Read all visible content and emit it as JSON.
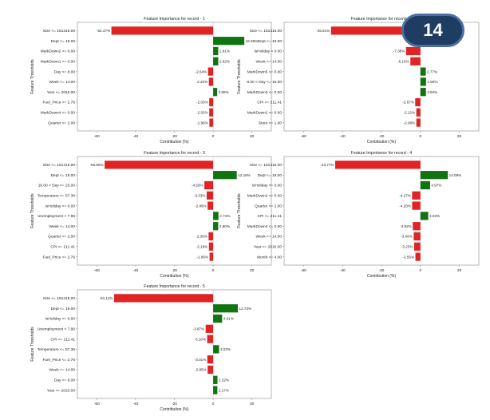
{
  "slide_number": "14",
  "colors": {
    "positive": "#127312",
    "negative": "#e02424",
    "frame": "#888888",
    "text": "#222222"
  },
  "chart_data": [
    {
      "type": "bar",
      "orientation": "horizontal",
      "title": "Feature Importance for record - 1",
      "xlabel": "Contribution (%)",
      "ylabel": "Feature Thresholds",
      "xlim": [
        -70,
        30
      ],
      "xticks": [
        -60,
        -40,
        -20,
        0,
        20
      ],
      "categories": [
        "Size <= 151315.00",
        "Dept <= 19.00",
        "MarkDown2 <= 0.00",
        "MarkDown1 <= 0.00",
        "Day <= 8.00",
        "Week <= 14.00",
        "Year <= 2010.00",
        "Fuel_Price <= 2.76",
        "MarkDown4 <= 0.00",
        "Quarter <= 2.00"
      ],
      "values": [
        -52.47,
        16.06,
        2.61,
        2.62,
        -2.64,
        -2.22,
        2.08,
        -2.03,
        -2.02,
        -1.96
      ],
      "labels": [
        "-52.47%",
        "16.06%",
        "2.61%",
        "2.62%",
        "-2.64%",
        "-2.22%",
        "2.08%",
        "-2.03%",
        "-2.02%",
        "-1.96%"
      ]
    },
    {
      "type": "bar",
      "orientation": "horizontal",
      "title": "Feature Importance for record - 2",
      "xlabel": "Contribution (%)",
      "ylabel": "Feature Thresholds",
      "xlim": [
        -70,
        30
      ],
      "xticks": [
        -60,
        -40,
        -20,
        0,
        20
      ],
      "categories": [
        "Size <= 151315.00",
        "Dept <= 19.00",
        "IsHoliday > 0.00",
        "Week <= 14.00",
        "MarkDown5 <= 0.00",
        "8.00 < Day <= 16.00",
        "MarkDown3 <= 0.00",
        "CPI <= 211.41",
        "MarkDown2 <= 0.00",
        "Store <= 1.00"
      ],
      "values": [
        -45.91,
        12.59,
        -7.38,
        -5.16,
        2.77,
        2.9,
        2.84,
        -2.67,
        -2.12,
        -2.08
      ],
      "labels": [
        "-45.91%",
        "12.59%",
        "-7.38%",
        "-5.16%",
        "2.77%",
        "2.90%",
        "2.84%",
        "-2.67%",
        "-2.12%",
        "-2.08%"
      ]
    },
    {
      "type": "bar",
      "orientation": "horizontal",
      "title": "Feature Importance for record - 3",
      "xlabel": "Contribution (%)",
      "ylabel": "Feature Thresholds",
      "xlim": [
        -70,
        30
      ],
      "xticks": [
        -60,
        -40,
        -20,
        0,
        20
      ],
      "categories": [
        "Size <= 151315.00",
        "Dept <= 19.00",
        "16.00 < Day <= 23.00",
        "Temperature <= 57.36",
        "IsHoliday <= 0.00",
        "Unemployment > 7.96",
        "Week <= 14.00",
        "Quarter <= 2.00",
        "CPI <= 211.41",
        "Fuel_Price <= 2.76"
      ],
      "values": [
        -55.96,
        12.18,
        -4.53,
        -3.33,
        -2.86,
        2.74,
        2.6,
        -2.36,
        -2.19,
        -1.86
      ],
      "labels": [
        "-55.96%",
        "12.18%",
        "-4.53%",
        "-3.33%",
        "-2.86%",
        "2.74%",
        "2.60%",
        "-2.36%",
        "-2.19%",
        "-1.86%"
      ]
    },
    {
      "type": "bar",
      "orientation": "horizontal",
      "title": "Feature Importance for record - 4",
      "xlabel": "Contribution (%)",
      "ylabel": "Feature Thresholds",
      "xlim": [
        -70,
        30
      ],
      "xticks": [
        -60,
        -40,
        -20,
        0,
        20
      ],
      "categories": [
        "Size <= 151315.00",
        "Dept <= 19.00",
        "IsHoliday <= 0.00",
        "MarkDown2 <= 0.00",
        "Quarter <= 2.00",
        "CPI <= 211.41",
        "MarkDown4 <= 0.00",
        "Week <= 14.00",
        "Year <= 2010.00",
        "Month <= 4.00"
      ],
      "values": [
        -43.77,
        14.09,
        4.97,
        -4.27,
        -4.26,
        4.02,
        -3.92,
        -3.46,
        -3.23,
        -2.55
      ],
      "labels": [
        "-43.77%",
        "14.09%",
        "4.97%",
        "-4.27%",
        "-4.26%",
        "4.02%",
        "-3.92%",
        "-3.46%",
        "-3.23%",
        "-2.55%"
      ]
    },
    {
      "type": "bar",
      "orientation": "horizontal",
      "title": "Feature Importance for record - 5",
      "xlabel": "Contribution (%)",
      "ylabel": "Feature Thresholds",
      "xlim": [
        -70,
        30
      ],
      "xticks": [
        -60,
        -40,
        -20,
        0,
        20
      ],
      "categories": [
        "Size <= 151315.00",
        "Dept <= 19.00",
        "IsHoliday <= 0.00",
        "Unemployment > 7.96",
        "CPI <= 211.41",
        "Temperature <= 57.36",
        "Fuel_Price <= 2.76",
        "Week <= 14.00",
        "Day <= 8.00",
        "Year <= 2010.00"
      ],
      "values": [
        -51.11,
        12.73,
        4.61,
        -3.87,
        -3.1,
        3.03,
        -3.01,
        -2.85,
        2.22,
        2.17
      ],
      "labels": [
        "-51.11%",
        "12.73%",
        "4.61%",
        "-3.87%",
        "-3.10%",
        "3.03%",
        "-3.01%",
        "-2.85%",
        "2.22%",
        "2.17%"
      ]
    }
  ]
}
